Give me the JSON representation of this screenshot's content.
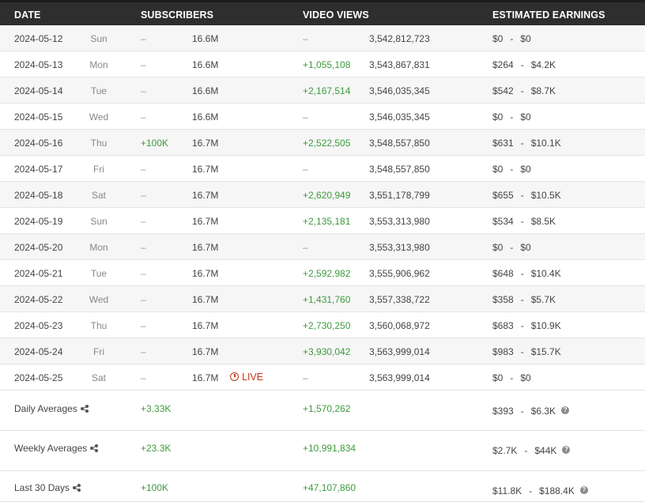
{
  "header": {
    "date": "DATE",
    "subscribers": "SUBSCRIBERS",
    "video_views": "VIDEO VIEWS",
    "estimated_earnings": "ESTIMATED EARNINGS"
  },
  "rows": [
    {
      "date": "2024-05-12",
      "day": "Sun",
      "sub_delta": "–",
      "sub_total": "16.6M",
      "view_delta": "–",
      "view_total": "3,542,812,723",
      "earn_low": "$0",
      "earn_high": "$0"
    },
    {
      "date": "2024-05-13",
      "day": "Mon",
      "sub_delta": "–",
      "sub_total": "16.6M",
      "view_delta": "+1,055,108",
      "view_total": "3,543,867,831",
      "earn_low": "$264",
      "earn_high": "$4.2K"
    },
    {
      "date": "2024-05-14",
      "day": "Tue",
      "sub_delta": "–",
      "sub_total": "16.6M",
      "view_delta": "+2,167,514",
      "view_total": "3,546,035,345",
      "earn_low": "$542",
      "earn_high": "$8.7K"
    },
    {
      "date": "2024-05-15",
      "day": "Wed",
      "sub_delta": "–",
      "sub_total": "16.6M",
      "view_delta": "–",
      "view_total": "3,546,035,345",
      "earn_low": "$0",
      "earn_high": "$0"
    },
    {
      "date": "2024-05-16",
      "day": "Thu",
      "sub_delta": "+100K",
      "sub_total": "16.7M",
      "view_delta": "+2,522,505",
      "view_total": "3,548,557,850",
      "earn_low": "$631",
      "earn_high": "$10.1K"
    },
    {
      "date": "2024-05-17",
      "day": "Fri",
      "sub_delta": "–",
      "sub_total": "16.7M",
      "view_delta": "–",
      "view_total": "3,548,557,850",
      "earn_low": "$0",
      "earn_high": "$0"
    },
    {
      "date": "2024-05-18",
      "day": "Sat",
      "sub_delta": "–",
      "sub_total": "16.7M",
      "view_delta": "+2,620,949",
      "view_total": "3,551,178,799",
      "earn_low": "$655",
      "earn_high": "$10.5K"
    },
    {
      "date": "2024-05-19",
      "day": "Sun",
      "sub_delta": "–",
      "sub_total": "16.7M",
      "view_delta": "+2,135,181",
      "view_total": "3,553,313,980",
      "earn_low": "$534",
      "earn_high": "$8.5K"
    },
    {
      "date": "2024-05-20",
      "day": "Mon",
      "sub_delta": "–",
      "sub_total": "16.7M",
      "view_delta": "–",
      "view_total": "3,553,313,980",
      "earn_low": "$0",
      "earn_high": "$0"
    },
    {
      "date": "2024-05-21",
      "day": "Tue",
      "sub_delta": "–",
      "sub_total": "16.7M",
      "view_delta": "+2,592,982",
      "view_total": "3,555,906,962",
      "earn_low": "$648",
      "earn_high": "$10.4K"
    },
    {
      "date": "2024-05-22",
      "day": "Wed",
      "sub_delta": "–",
      "sub_total": "16.7M",
      "view_delta": "+1,431,760",
      "view_total": "3,557,338,722",
      "earn_low": "$358",
      "earn_high": "$5.7K"
    },
    {
      "date": "2024-05-23",
      "day": "Thu",
      "sub_delta": "–",
      "sub_total": "16.7M",
      "view_delta": "+2,730,250",
      "view_total": "3,560,068,972",
      "earn_low": "$683",
      "earn_high": "$10.9K"
    },
    {
      "date": "2024-05-24",
      "day": "Fri",
      "sub_delta": "–",
      "sub_total": "16.7M",
      "view_delta": "+3,930,042",
      "view_total": "3,563,999,014",
      "earn_low": "$983",
      "earn_high": "$15.7K"
    },
    {
      "date": "2024-05-25",
      "day": "Sat",
      "sub_delta": "–",
      "sub_total": "16.7M",
      "live": "LIVE",
      "view_delta": "–",
      "view_total": "3,563,999,014",
      "earn_low": "$0",
      "earn_high": "$0"
    }
  ],
  "summary": [
    {
      "label": "Daily Averages",
      "sub": "+3.33K",
      "views": "+1,570,262",
      "earn_low": "$393",
      "earn_high": "$6.3K"
    },
    {
      "label": "Weekly Averages",
      "sub": "+23.3K",
      "views": "+10,991,834",
      "earn_low": "$2.7K",
      "earn_high": "$44K"
    },
    {
      "label": "Last 30 Days",
      "sub": "+100K",
      "views": "+47,107,860",
      "earn_low": "$11.8K",
      "earn_high": "$188.4K"
    }
  ],
  "earnings_separator": "-",
  "help_glyph": "?",
  "colors": {
    "positive": "#3c9a3c",
    "live": "#c4391d",
    "header_bg": "#2e2e2e"
  }
}
